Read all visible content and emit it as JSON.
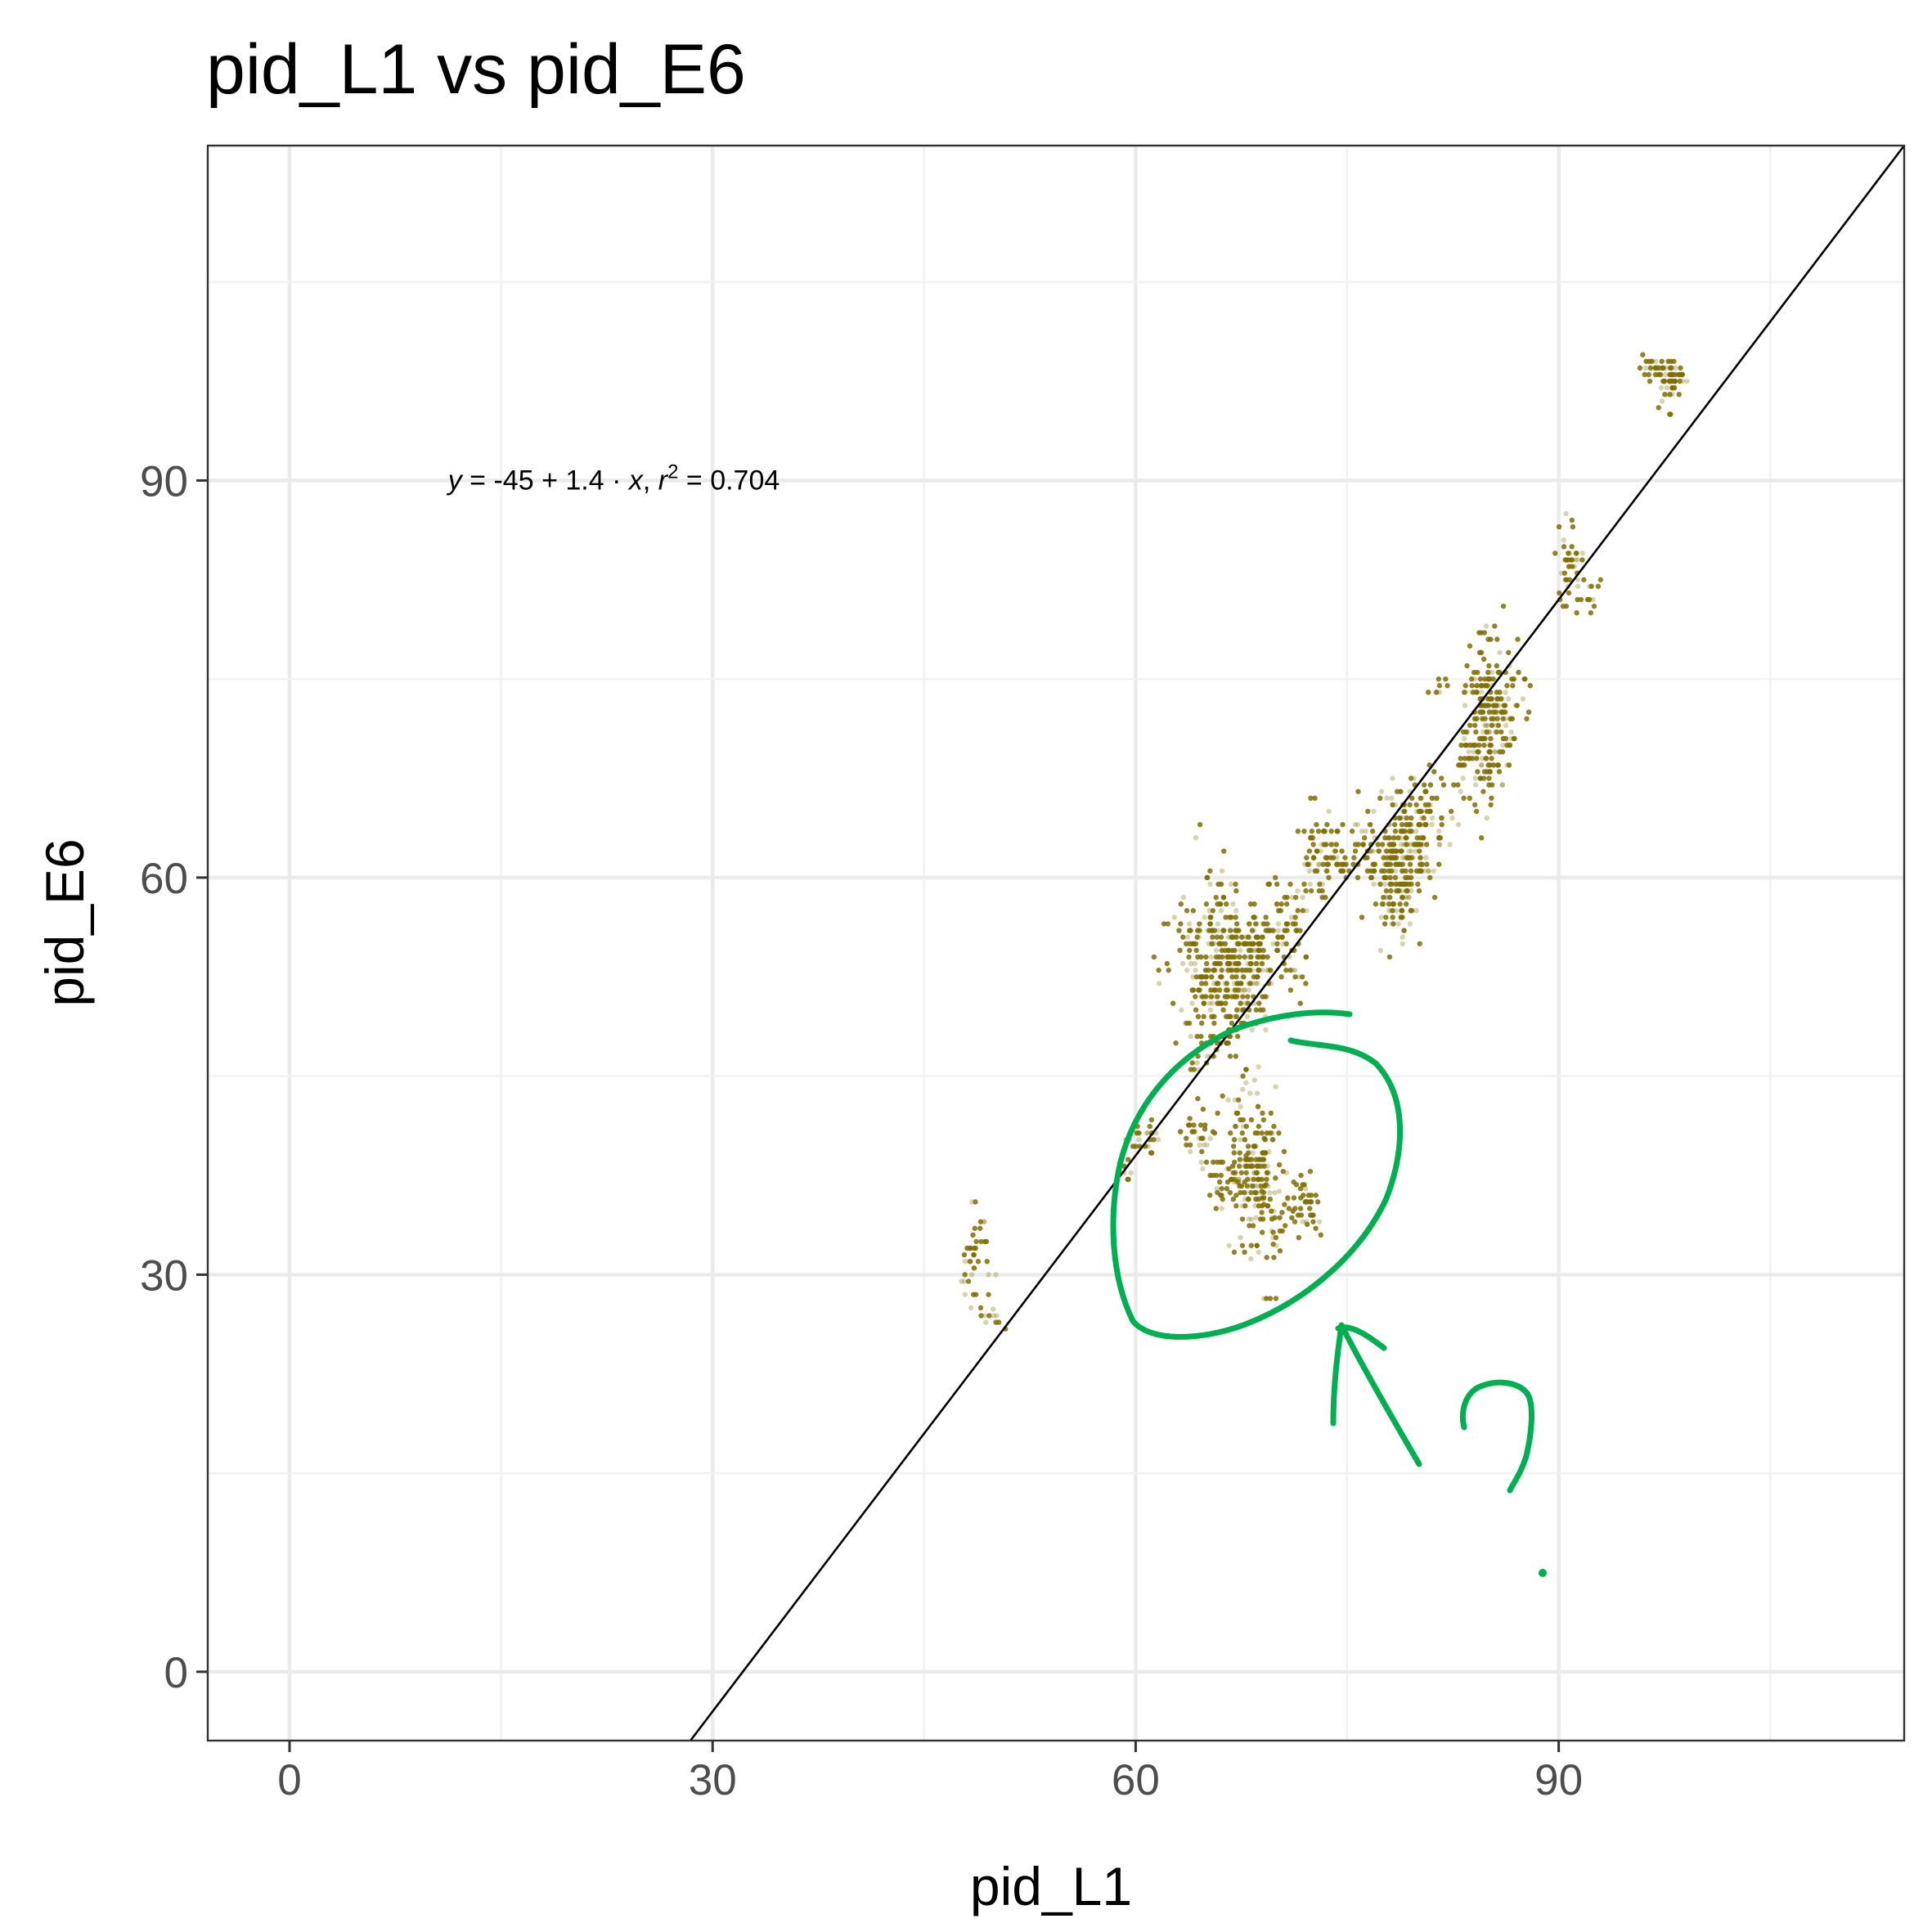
{
  "colors": {
    "points": "#7f6f00",
    "fit_line": "#000000",
    "grid_major": "#ebebeb",
    "grid_minor": "#f2f2f2",
    "panel_border": "#333333",
    "annotation": "#00b050"
  },
  "chart_data": {
    "type": "scatter",
    "title": "pid_L1 vs pid_E6",
    "xlabel": "pid_L1",
    "ylabel": "pid_E6",
    "xlim": [
      -5.8,
      114.5
    ],
    "ylim": [
      -5.2,
      115.3
    ],
    "x_ticks": [
      0,
      30,
      60,
      90
    ],
    "y_ticks": [
      0,
      30,
      60,
      90
    ],
    "x_tick_labels": [
      "0",
      "30",
      "60",
      "90"
    ],
    "y_tick_labels": [
      "0",
      "30",
      "60",
      "90"
    ],
    "grid": true,
    "equation": {
      "y": "y",
      "eq1": " = -45 + 1.4 · ",
      "x": "x",
      "sep": ",  ",
      "r": "r",
      "sup": "2",
      "eq2": " = 0.704",
      "x_pos": 23,
      "y_pos": 89.3
    },
    "fit_line": {
      "intercept": -45,
      "slope": 1.4
    },
    "clusters": [
      {
        "cx": 48.7,
        "cy": 31.5,
        "sx": 0.5,
        "sy": 2.3,
        "n": 40
      },
      {
        "cx": 49.8,
        "cy": 26.9,
        "sx": 0.6,
        "sy": 0.4,
        "n": 10
      },
      {
        "cx": 60.6,
        "cy": 40.2,
        "sx": 0.6,
        "sy": 0.6,
        "n": 25
      },
      {
        "cx": 59.3,
        "cy": 37.7,
        "sx": 0.4,
        "sy": 0.4,
        "n": 8
      },
      {
        "cx": 64.1,
        "cy": 40.8,
        "sx": 0.6,
        "sy": 1.0,
        "n": 25
      },
      {
        "cx": 66.4,
        "cy": 37.5,
        "sx": 1.0,
        "sy": 1.2,
        "n": 30
      },
      {
        "cx": 68.4,
        "cy": 38.2,
        "sx": 0.9,
        "sy": 2.8,
        "n": 180
      },
      {
        "cx": 70.2,
        "cy": 34.8,
        "sx": 1.1,
        "sy": 1.6,
        "n": 40
      },
      {
        "cx": 72.0,
        "cy": 35.0,
        "sx": 0.7,
        "sy": 1.2,
        "n": 30
      },
      {
        "cx": 69.6,
        "cy": 28.2,
        "sx": 0.3,
        "sy": 0.2,
        "n": 4
      },
      {
        "cx": 64.9,
        "cy": 52.0,
        "sx": 0.8,
        "sy": 4.0,
        "n": 120
      },
      {
        "cx": 66.9,
        "cy": 53.0,
        "sx": 1.0,
        "sy": 3.2,
        "n": 220
      },
      {
        "cx": 68.5,
        "cy": 54.5,
        "sx": 0.7,
        "sy": 2.0,
        "n": 70
      },
      {
        "cx": 70.8,
        "cy": 56.0,
        "sx": 0.8,
        "sy": 2.2,
        "n": 70
      },
      {
        "cx": 63.2,
        "cy": 55.0,
        "sx": 0.9,
        "sy": 2.0,
        "n": 25
      },
      {
        "cx": 73.3,
        "cy": 62.0,
        "sx": 1.0,
        "sy": 1.8,
        "n": 70
      },
      {
        "cx": 76.8,
        "cy": 62.0,
        "sx": 1.2,
        "sy": 1.3,
        "n": 60
      },
      {
        "cx": 78.6,
        "cy": 61.0,
        "sx": 1.1,
        "sy": 2.4,
        "n": 170
      },
      {
        "cx": 80.3,
        "cy": 64.0,
        "sx": 0.9,
        "sy": 2.2,
        "n": 90
      },
      {
        "cx": 78.5,
        "cy": 57.5,
        "sx": 0.8,
        "sy": 1.2,
        "n": 25
      },
      {
        "cx": 83.7,
        "cy": 69.0,
        "sx": 0.6,
        "sy": 1.4,
        "n": 30
      },
      {
        "cx": 84.8,
        "cy": 72.0,
        "sx": 0.7,
        "sy": 3.3,
        "n": 170
      },
      {
        "cx": 86.2,
        "cy": 71.5,
        "sx": 0.5,
        "sy": 2.3,
        "n": 40
      },
      {
        "cx": 87.6,
        "cy": 74.0,
        "sx": 0.4,
        "sy": 1.2,
        "n": 10
      },
      {
        "cx": 81.5,
        "cy": 74.0,
        "sx": 0.5,
        "sy": 0.6,
        "n": 8
      },
      {
        "cx": 90.7,
        "cy": 84.0,
        "sx": 0.5,
        "sy": 1.4,
        "n": 40
      },
      {
        "cx": 92.0,
        "cy": 81.5,
        "sx": 0.6,
        "sy": 0.8,
        "n": 15
      },
      {
        "cx": 96.5,
        "cy": 98.5,
        "sx": 0.8,
        "sy": 0.4,
        "n": 30
      },
      {
        "cx": 98.2,
        "cy": 97.5,
        "sx": 0.5,
        "sy": 1.0,
        "n": 50
      }
    ]
  }
}
